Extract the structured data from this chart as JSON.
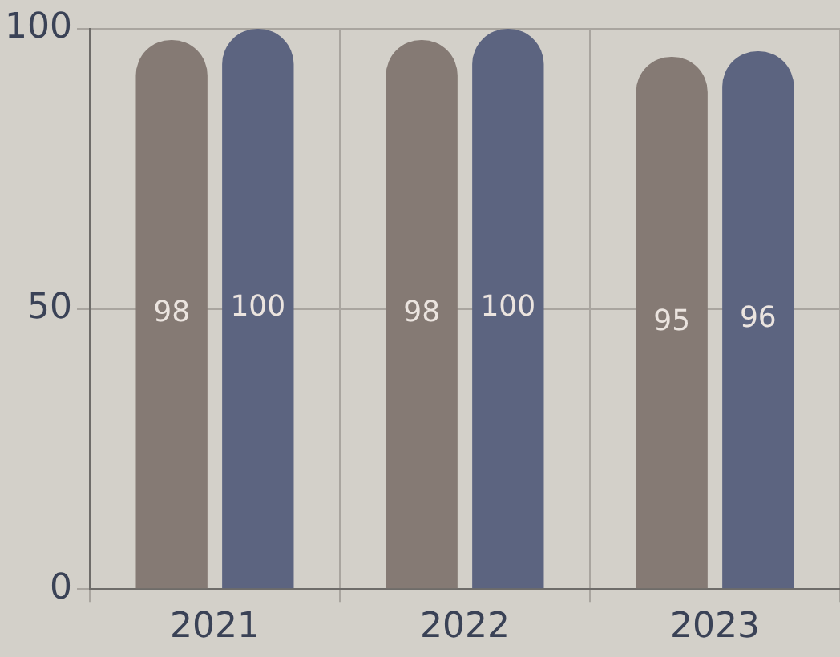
{
  "chart_data": {
    "type": "bar",
    "categories": [
      "2021",
      "2022",
      "2023"
    ],
    "series": [
      {
        "color": "#857a74",
        "values": [
          98,
          98,
          95
        ]
      },
      {
        "color": "#5c6480",
        "values": [
          100,
          100,
          96
        ]
      }
    ],
    "ylim": [
      0,
      100
    ],
    "yticks": [
      0,
      50,
      100
    ],
    "grid": true,
    "data_labels": true,
    "legend": false
  }
}
